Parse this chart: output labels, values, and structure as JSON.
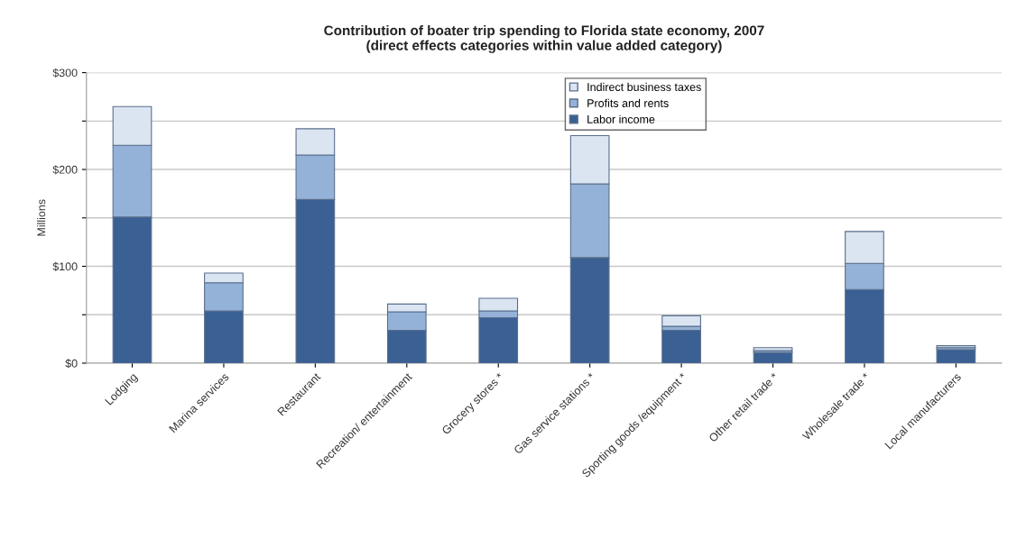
{
  "chart_data": {
    "type": "bar",
    "stacked": true,
    "title": "Contribution of boater trip spending to Florida state economy, 2007\n(direct effects categories within value added category)",
    "ylabel": "Millions",
    "categories": [
      "Lodging",
      "Marina services",
      "Restaurant",
      "Recreation/ entertainment",
      "Grocery stores *",
      "Gas service stations *",
      "Sporting goods /equipment *",
      "Other retail trade *",
      "Wholesale trade *",
      "Local manufacturers"
    ],
    "series": [
      {
        "name": "Labor income",
        "color": "#3a6094",
        "values": [
          151,
          54,
          169,
          34,
          47,
          109,
          34,
          11,
          76,
          14
        ]
      },
      {
        "name": "Profits and rents",
        "color": "#94b2d8",
        "values": [
          74,
          29,
          46,
          19,
          7,
          76,
          4,
          2,
          27,
          2
        ]
      },
      {
        "name": "Indirect business taxes",
        "color": "#dbe5f2",
        "values": [
          40,
          10,
          27,
          8,
          13,
          50,
          11,
          3,
          33,
          2
        ]
      }
    ],
    "ylim": [
      0,
      300
    ],
    "yticks": [
      {
        "value": 0,
        "label": "$0"
      },
      {
        "value": 50,
        "label": null
      },
      {
        "value": 100,
        "label": "$100"
      },
      {
        "value": 150,
        "label": null
      },
      {
        "value": 200,
        "label": "$200"
      },
      {
        "value": 250,
        "label": null
      },
      {
        "value": 300,
        "label": "$300"
      }
    ],
    "grid": "y",
    "legend": "top"
  }
}
